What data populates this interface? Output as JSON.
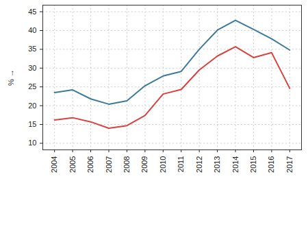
{
  "chart_data": {
    "type": "line",
    "y_label": "%",
    "x": [
      2004,
      2005,
      2006,
      2007,
      2008,
      2009,
      2010,
      2011,
      2012,
      2013,
      2014,
      2015,
      2016,
      2017
    ],
    "series": [
      {
        "color": "#3d7a9a",
        "values": [
          23.5,
          24.2,
          21.8,
          20.4,
          21.3,
          25.3,
          27.9,
          29.1,
          35.0,
          40.1,
          42.7,
          40.3,
          37.8,
          34.8
        ]
      },
      {
        "color": "#d9413f",
        "values": [
          16.2,
          16.8,
          15.7,
          14.0,
          14.7,
          17.4,
          23.1,
          24.3,
          29.5,
          33.2,
          35.7,
          32.8,
          34.1,
          24.6
        ]
      }
    ],
    "xlim": [
      2003.35,
      2017.65
    ],
    "ylim": [
      8.25,
      46.75
    ],
    "xticks": [
      2004,
      2005,
      2006,
      2007,
      2008,
      2009,
      2010,
      2011,
      2012,
      2013,
      2014,
      2015,
      2016,
      2017
    ],
    "yticks": [
      10,
      15,
      20,
      25,
      30,
      35,
      40,
      45
    ],
    "grid": true
  }
}
